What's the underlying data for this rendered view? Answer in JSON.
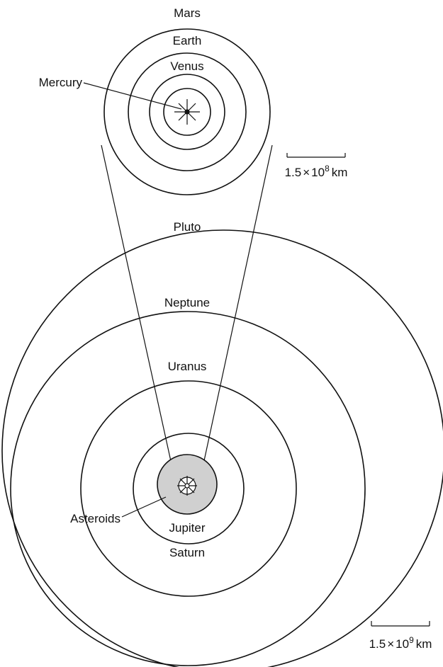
{
  "inner_system": {
    "labels": [
      "Mars",
      "Earth",
      "Venus",
      "Mercury"
    ],
    "scale": {
      "mantissa": "1.5",
      "times": "×",
      "base": "10",
      "exponent": "8",
      "unit": "km"
    }
  },
  "outer_system": {
    "labels": [
      "Pluto",
      "Neptune",
      "Uranus",
      "Asteroids",
      "Jupiter",
      "Saturn"
    ],
    "scale": {
      "mantissa": "1.5",
      "times": "×",
      "base": "10",
      "exponent": "9",
      "unit": "km"
    }
  }
}
